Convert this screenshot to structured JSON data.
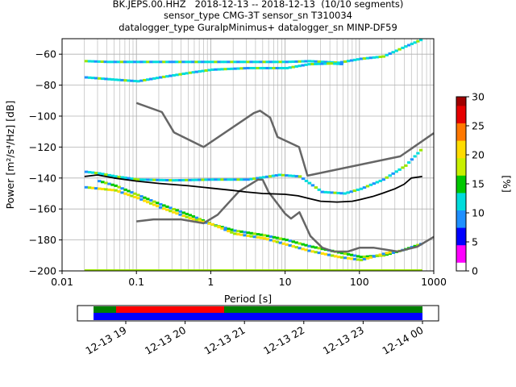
{
  "title": {
    "line1": "BK.JEPS.00.HHZ   2018-12-13 -- 2018-12-13  (10/10 segments)",
    "line2": "sensor_type CMG-3T sensor_sn T310034",
    "line3": "datalogger_type GuralpMinimus+ datalogger_sn MINP-DF59"
  },
  "chart_data": {
    "type": "heatmap",
    "xlabel": "Period [s]",
    "ylabel": "Power [m²/s⁴/Hz] [dB]",
    "xscale": "log",
    "xlim": [
      0.01,
      1000
    ],
    "ylim": [
      -200,
      -50
    ],
    "xticks": [
      {
        "value": 0.01,
        "label": "0.01"
      },
      {
        "value": 0.1,
        "label": "0.1"
      },
      {
        "value": 1,
        "label": "1"
      },
      {
        "value": 10,
        "label": "10"
      },
      {
        "value": 100,
        "label": "100"
      },
      {
        "value": 1000,
        "label": "1000"
      }
    ],
    "yticks": [
      -60,
      -80,
      -100,
      -120,
      -140,
      -160,
      -180,
      -200
    ],
    "grid": true,
    "colorbar": {
      "label": "[%]",
      "min": 0,
      "max": 30,
      "ticks": [
        0,
        5,
        10,
        15,
        20,
        25,
        30
      ],
      "colormap": [
        "#ffffff",
        "#ff00ff",
        "#0000ff",
        "#1f90ff",
        "#00dcdc",
        "#00c800",
        "#c8f000",
        "#ffdc00",
        "#ff7800",
        "#e60000",
        "#a00000"
      ]
    },
    "mode_line": {
      "name": "mode",
      "color": "#000000",
      "x": [
        0.02,
        0.03,
        0.05,
        0.1,
        0.2,
        0.5,
        1,
        2,
        3,
        5,
        10,
        15,
        20,
        30,
        50,
        80,
        100,
        150,
        200,
        300,
        400,
        500,
        700
      ],
      "y": [
        -139,
        -138,
        -140,
        -142,
        -143.5,
        -145,
        -146.5,
        -148,
        -149,
        -150,
        -150.5,
        -151.5,
        -153,
        -155,
        -155.5,
        -155,
        -154,
        -152,
        -150,
        -147,
        -144,
        -140,
        -139
      ]
    },
    "nlnm": {
      "name": "NLNM",
      "color": "#666666",
      "x": [
        0.1,
        0.17,
        0.4,
        0.8,
        1.24,
        2.4,
        4.3,
        5.0,
        6.0,
        10,
        12,
        15.6,
        21.9,
        31.6,
        45,
        70,
        101,
        154,
        328,
        600,
        1000
      ],
      "y": [
        -168,
        -166.7,
        -166.7,
        -169.2,
        -163.7,
        -148.6,
        -141.1,
        -141.1,
        -149,
        -163,
        -166.2,
        -162.1,
        -177.5,
        -185,
        -187.5,
        -187.5,
        -185,
        -185,
        -187.5,
        -184.4,
        -178
      ]
    },
    "nhnm": {
      "name": "NHNM",
      "color": "#666666",
      "x": [
        0.1,
        0.22,
        0.32,
        0.8,
        3.8,
        4.6,
        6.3,
        7.9,
        15.4,
        20,
        354.8,
        1000
      ],
      "y": [
        -91.5,
        -97.4,
        -110.5,
        -120,
        -98,
        -96.5,
        -101,
        -113.5,
        -120,
        -138.5,
        -126,
        -111
      ]
    },
    "psd_histogram": {
      "description_bands": [
        {
          "x": [
            0.02,
            0.04,
            0.1,
            0.3,
            1,
            3,
            10,
            20,
            50,
            100,
            200,
            400,
            700
          ],
          "y": [
            -64.5,
            -65,
            -65,
            -65,
            -65,
            -65,
            -65,
            -64.5,
            -65.5,
            -63,
            -61.5,
            -55,
            -50
          ],
          "percent": 12
        },
        {
          "x": [
            0.02,
            0.05,
            0.1,
            0.2,
            0.5,
            1,
            3,
            10,
            20,
            40,
            60
          ],
          "y": [
            -75,
            -76.5,
            -77.5,
            -75,
            -72,
            -70,
            -69,
            -69,
            -66.5,
            -66,
            -66.5
          ],
          "percent": 11
        },
        {
          "x": [
            0.02,
            0.03,
            0.05,
            0.1,
            0.3,
            1,
            3,
            8,
            15,
            30,
            60,
            100,
            200,
            400,
            700
          ],
          "y": [
            -136,
            -137,
            -139,
            -141,
            -141.5,
            -141,
            -141,
            -138,
            -139,
            -149,
            -150,
            -147,
            -141,
            -132,
            -120
          ],
          "percent": 12
        },
        {
          "x": [
            0.03,
            0.05,
            0.1,
            0.2,
            0.5,
            1,
            2,
            5,
            10,
            20,
            50,
            100,
            200,
            400,
            700
          ],
          "y": [
            -142,
            -145,
            -151,
            -157,
            -164,
            -170,
            -174,
            -177,
            -180,
            -184,
            -188,
            -191,
            -190,
            -186,
            -182
          ],
          "percent": 16
        },
        {
          "x": [
            0.02,
            0.05,
            0.1,
            0.2,
            0.5,
            1,
            2,
            5,
            10,
            20,
            50,
            100,
            200,
            300
          ],
          "y": [
            -146,
            -148,
            -153,
            -159,
            -166,
            -170,
            -176,
            -179,
            -183,
            -187,
            -191,
            -193,
            -189,
            -187
          ],
          "percent": 20
        }
      ]
    }
  },
  "timeline": {
    "tick_labels": [
      "12-13 19",
      "12-13 20",
      "12-13 21",
      "12-13 22",
      "12-13 23",
      "12-14 00"
    ],
    "bar_colors": {
      "data": "#0000ff",
      "ok": "#008000",
      "gap": "#ff0000"
    }
  }
}
